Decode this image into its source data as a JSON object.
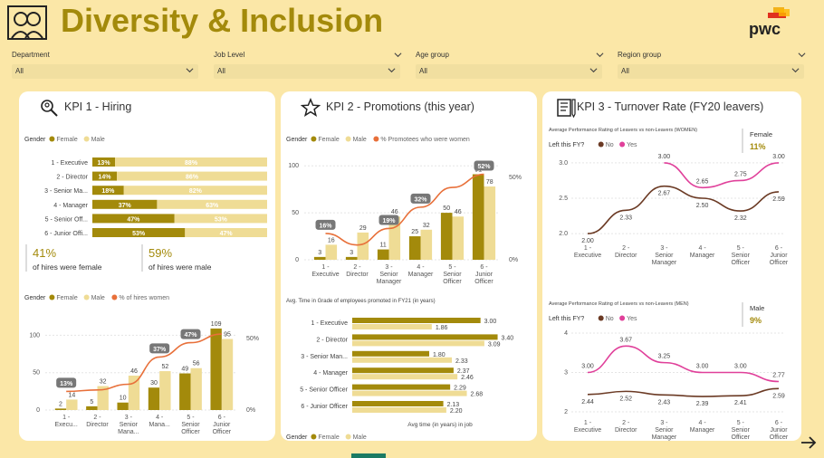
{
  "header": {
    "title": "Diversity & Inclusion",
    "brand": "pwc",
    "icon": "people-icon"
  },
  "filters": [
    {
      "label": "Department",
      "value": "All"
    },
    {
      "label": "Job Level",
      "value": "All"
    },
    {
      "label": "Age group",
      "value": "All"
    },
    {
      "label": "Region group",
      "value": "All"
    }
  ],
  "cards": [
    {
      "title": "KPI 1 - Hiring",
      "icon": "search-icon"
    },
    {
      "title": "KPI 2 - Promotions (this year)",
      "icon": "star-icon"
    },
    {
      "title": "KPI 3 - Turnover Rate (FY20 leavers)",
      "icon": "notebook-icon"
    }
  ],
  "kpi1_stats": {
    "female_value": "41%",
    "female_label": "of hires were female",
    "male_value": "59%",
    "male_label": "of hires were male"
  },
  "colors": {
    "female": "#a38a0b",
    "male": "#efdc95",
    "line": "#e8703a",
    "no": "#6b3a24",
    "yes": "#e0409a",
    "accent": "#a38a0b"
  },
  "chart_data": [
    {
      "id": "hiring_split",
      "type": "bar",
      "orientation": "horizontal",
      "stacked": "100%",
      "legend_title": "Gender",
      "legend": [
        "Female",
        "Male"
      ],
      "categories": [
        "1 - Executive",
        "2 - Director",
        "3 - Senior Ma...",
        "4 - Manager",
        "5 - Senior Off...",
        "6 - Junior Offi..."
      ],
      "series": [
        {
          "name": "Female",
          "values": [
            13,
            14,
            18,
            37,
            47,
            53
          ],
          "labels": [
            "13%",
            "14%",
            "18%",
            "37%",
            "47%",
            "53%"
          ]
        },
        {
          "name": "Male",
          "values": [
            88,
            86,
            82,
            63,
            53,
            47
          ],
          "labels": [
            "88%",
            "86%",
            "82%",
            "63%",
            "53%",
            "47%"
          ]
        }
      ]
    },
    {
      "id": "hiring_counts",
      "type": "bar",
      "legend_title": "Gender",
      "legend": [
        "Female",
        "Male",
        "% of hires women"
      ],
      "categories": [
        "1 - Execu...",
        "2 - Director",
        "3 - Senior Mana...",
        "4 - Mana...",
        "5 - Senior Officer",
        "6 - Junior Officer"
      ],
      "series": [
        {
          "name": "Female",
          "values": [
            2,
            5,
            10,
            30,
            49,
            109
          ]
        },
        {
          "name": "Male",
          "values": [
            14,
            32,
            46,
            52,
            56,
            95
          ]
        }
      ],
      "line": {
        "name": "% of hires women",
        "values": [
          13,
          14,
          18,
          37,
          47,
          53
        ],
        "labels": [
          "13%",
          "",
          "",
          "37%",
          "47%",
          ""
        ]
      },
      "y_ticks": [
        "0",
        "50",
        "100"
      ],
      "y2_ticks": [
        "0%",
        "50%"
      ],
      "ylim": [
        0,
        115
      ],
      "y2lim": [
        0,
        60
      ]
    },
    {
      "id": "promotions",
      "type": "bar",
      "legend_title": "Gender",
      "legend": [
        "Female",
        "Male",
        "% Promotees who were women"
      ],
      "categories": [
        "1 - Executive",
        "2 - Director",
        "3 - Senior Manager",
        "4 - Manager",
        "5 - Senior Officer",
        "6 - Junior Officer"
      ],
      "series": [
        {
          "name": "Female",
          "values": [
            3,
            3,
            11,
            25,
            50,
            91
          ]
        },
        {
          "name": "Male",
          "values": [
            16,
            29,
            46,
            32,
            46,
            78
          ]
        }
      ],
      "line": {
        "name": "% Promotees who were women",
        "values": [
          16,
          9,
          19,
          32,
          44,
          52
        ],
        "labels": [
          "16%",
          "",
          "19%",
          "32%",
          "",
          "52%"
        ]
      },
      "y_ticks": [
        "0",
        "50",
        "100"
      ],
      "y2_ticks": [
        "0%",
        "50%"
      ],
      "ylim": [
        0,
        105
      ],
      "y2lim": [
        0,
        60
      ]
    },
    {
      "id": "time_in_grade",
      "type": "bar",
      "orientation": "horizontal",
      "title": "Avg. Time in Grade of employees promoted in FY21 (in years)",
      "xlabel": "Avg time (in years) in job",
      "legend_title": "Gender",
      "legend": [
        "Female",
        "Male"
      ],
      "categories": [
        "1 - Executive",
        "2 - Director",
        "3 - Senior Man...",
        "4 - Manager",
        "5 - Senior Officer",
        "6 - Junior Officer"
      ],
      "series": [
        {
          "name": "Female",
          "values": [
            3.0,
            3.4,
            1.8,
            2.37,
            2.29,
            2.13
          ]
        },
        {
          "name": "Male",
          "values": [
            1.86,
            3.09,
            2.33,
            2.46,
            2.68,
            2.2
          ]
        }
      ],
      "xlim": [
        0,
        3.6
      ]
    },
    {
      "id": "turnover_women",
      "type": "line",
      "title": "Average Performance Rating of Leavers vs non-Leavers (WOMEN)",
      "legend_title": "Left this FY?",
      "legend": [
        "No",
        "Yes"
      ],
      "badge_label": "Female",
      "badge_value": "11%",
      "categories": [
        "1 - Executive",
        "2 - Director",
        "3 - Senior Manager",
        "4 - Manager",
        "5 - Senior Officer",
        "6 - Junior Officer"
      ],
      "series": [
        {
          "name": "No",
          "values": [
            2.0,
            2.33,
            2.67,
            2.5,
            2.32,
            2.59
          ]
        },
        {
          "name": "Yes",
          "values": [
            null,
            null,
            3.0,
            2.65,
            2.75,
            3.0
          ]
        }
      ],
      "y_ticks": [
        "2.0",
        "2.5",
        "3.0"
      ],
      "ylim": [
        1.95,
        3.05
      ]
    },
    {
      "id": "turnover_men",
      "type": "line",
      "title": "Average Performance Rating of Leavers vs non-Leavers (MEN)",
      "legend_title": "Left this FY?",
      "legend": [
        "No",
        "Yes"
      ],
      "badge_label": "Male",
      "badge_value": "9%",
      "categories": [
        "1 - Executive",
        "2 - Director",
        "3 - Senior Manager",
        "4 - Manager",
        "5 - Senior Officer",
        "6 - Junior Officer"
      ],
      "series": [
        {
          "name": "No",
          "values": [
            2.44,
            2.52,
            2.43,
            2.39,
            2.41,
            2.59
          ]
        },
        {
          "name": "Yes",
          "values": [
            3.0,
            3.67,
            3.25,
            3.0,
            3.0,
            2.77
          ]
        }
      ],
      "y_ticks": [
        "2",
        "3",
        "4"
      ],
      "ylim": [
        2,
        4
      ]
    }
  ]
}
